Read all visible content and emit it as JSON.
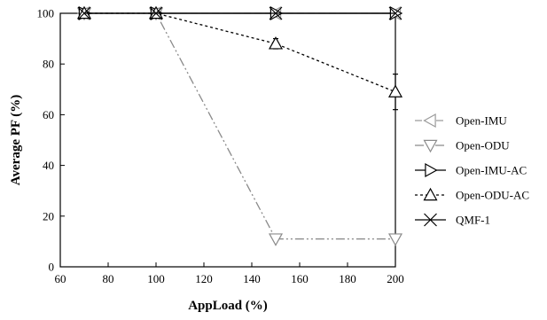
{
  "chart_data": {
    "type": "line",
    "title": "",
    "xlabel": "AppLoad (%)",
    "ylabel": "Average PF (%)",
    "xlim": [
      60,
      200
    ],
    "ylim": [
      0,
      100
    ],
    "xticks": [
      60,
      80,
      100,
      120,
      140,
      160,
      180,
      200
    ],
    "yticks": [
      0,
      20,
      40,
      60,
      80,
      100
    ],
    "grid": false,
    "legend_position": "right",
    "series": [
      {
        "name": "Open-IMU",
        "x": [
          70,
          100,
          150,
          200
        ],
        "y": [
          100,
          100,
          100,
          100
        ],
        "color": "#9a9a9a",
        "dash": "8,4",
        "marker": "triangle-left"
      },
      {
        "name": "Open-ODU",
        "x": [
          70,
          100,
          150,
          200
        ],
        "y": [
          100,
          100,
          11,
          11
        ],
        "color": "#8a8a8a",
        "dash": "10,3,2,3,2,3",
        "marker": "triangle-down"
      },
      {
        "name": "Open-IMU-AC",
        "x": [
          70,
          100,
          150,
          200
        ],
        "y": [
          100,
          100,
          100,
          100
        ],
        "color": "#000000",
        "dash": "",
        "marker": "triangle-right"
      },
      {
        "name": "Open-ODU-AC",
        "x": [
          70,
          100,
          150,
          200
        ],
        "y": [
          100,
          100,
          88,
          69
        ],
        "error": [
          0,
          0,
          2,
          7
        ],
        "color": "#000000",
        "dash": "3,3",
        "marker": "triangle-up"
      },
      {
        "name": "QMF-1",
        "x": [
          70,
          100,
          150,
          200
        ],
        "y": [
          100,
          100,
          100,
          100
        ],
        "color": "#000000",
        "dash": "",
        "marker": "x"
      }
    ]
  }
}
